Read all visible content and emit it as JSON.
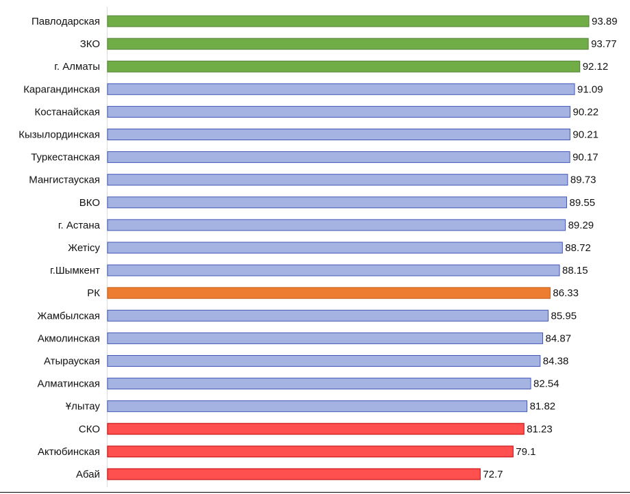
{
  "chart_data": {
    "type": "bar",
    "orientation": "horizontal",
    "title": "",
    "xlabel": "",
    "ylabel": "",
    "xlim": [
      0,
      93.89
    ],
    "grid": false,
    "legend": "none",
    "colors": {
      "top_group": "#70ad47",
      "middle_group": "#a5b3e3",
      "national": "#ed7d31",
      "bottom_group": "#ff5050",
      "middle_border": "#4055b6",
      "top_border": "#507e32",
      "bottom_border": "#c00000",
      "national_border": "#c55a11"
    },
    "categories": [
      "Павлодарская",
      "ЗКО",
      "г. Алматы",
      "Карагандинская",
      "Костанайская",
      "Кызылординская",
      "Туркестанская",
      "Мангистауская",
      "ВКО",
      "г. Астана",
      "Жетісу",
      "г.Шымкент",
      "РК",
      "Жамбылская",
      "Акмолинская",
      "Атырауская",
      "Алматинская",
      "Ұлытау",
      "СКО",
      "Актюбинская",
      "Абай"
    ],
    "values": [
      93.89,
      93.77,
      92.12,
      91.09,
      90.22,
      90.21,
      90.17,
      89.73,
      89.55,
      89.29,
      88.72,
      88.15,
      86.33,
      85.95,
      84.87,
      84.38,
      82.54,
      81.82,
      81.23,
      79.1,
      72.7
    ],
    "value_labels": [
      "93.89",
      "93.77",
      "92.12",
      "91.09",
      "90.22",
      "90.21",
      "90.17",
      "89.73",
      "89.55",
      "89.29",
      "88.72",
      "88.15",
      "86.33",
      "85.95",
      "84.87",
      "84.38",
      "82.54",
      "81.82",
      "81.23",
      "79.1",
      "72.7"
    ],
    "groups": [
      "top_group",
      "top_group",
      "top_group",
      "middle_group",
      "middle_group",
      "middle_group",
      "middle_group",
      "middle_group",
      "middle_group",
      "middle_group",
      "middle_group",
      "middle_group",
      "national",
      "middle_group",
      "middle_group",
      "middle_group",
      "middle_group",
      "middle_group",
      "bottom_group",
      "bottom_group",
      "bottom_group"
    ]
  }
}
